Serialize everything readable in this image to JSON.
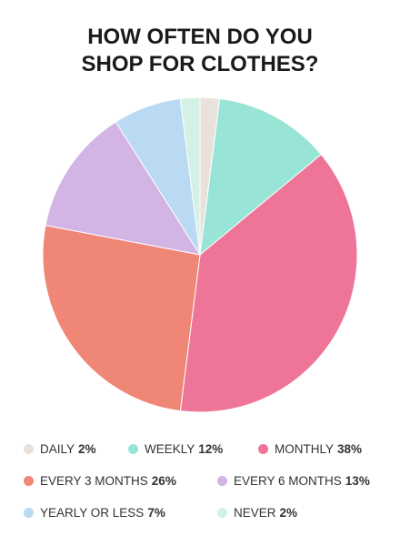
{
  "chart_data": {
    "type": "pie",
    "title": "HOW OFTEN DO YOU SHOP FOR CLOTHES?",
    "categories": [
      "DAILY",
      "WEEKLY",
      "MONTHLY",
      "EVERY 3 MONTHS",
      "EVERY 6 MONTHS",
      "YEARLY OR LESS",
      "NEVER"
    ],
    "values": [
      2,
      12,
      38,
      26,
      13,
      7,
      2
    ],
    "value_labels": [
      "2%",
      "12%",
      "38%",
      "26%",
      "13%",
      "7%",
      "2%"
    ],
    "colors": [
      "#e8e1dc",
      "#98e4d6",
      "#ee7597",
      "#ef8676",
      "#d2b4e5",
      "#b9daf2",
      "#d3f1e4"
    ]
  }
}
